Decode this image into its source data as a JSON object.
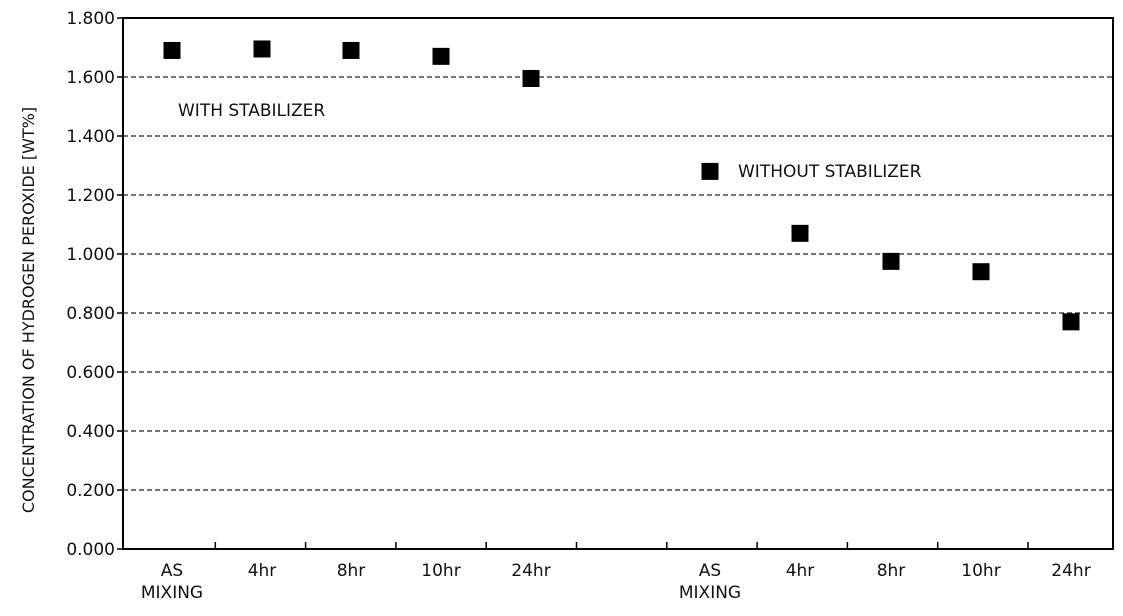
{
  "chart_data": {
    "type": "scatter",
    "title": "",
    "xlabel": "",
    "ylabel": "CONCENTRATION OF HYDROGEN PEROXIDE [WT%]",
    "ylim": [
      0,
      1.8
    ],
    "y_ticks": [
      "0.000",
      "0.200",
      "0.400",
      "0.600",
      "0.800",
      "1.000",
      "1.200",
      "1.400",
      "1.600",
      "1.800"
    ],
    "grid": "horizontal-dashed",
    "categories": [
      "AS MIXING",
      "4hr",
      "8hr",
      "10hr",
      "24hr",
      "AS MIXING",
      "4hr",
      "8hr",
      "10hr",
      "24hr"
    ],
    "series": [
      {
        "name": "WITH STABILIZER",
        "category_index": [
          0,
          1,
          2,
          3,
          4
        ],
        "values": [
          1.69,
          1.695,
          1.69,
          1.67,
          1.595
        ]
      },
      {
        "name": "WITHOUT STABILIZER",
        "category_index": [
          5,
          6,
          7,
          8,
          9
        ],
        "values": [
          1.28,
          1.07,
          0.975,
          0.94,
          0.77
        ]
      }
    ],
    "colors": {
      "marker": "#000000",
      "grid": "#222222",
      "axis": "#000000",
      "text": "#111111"
    }
  }
}
